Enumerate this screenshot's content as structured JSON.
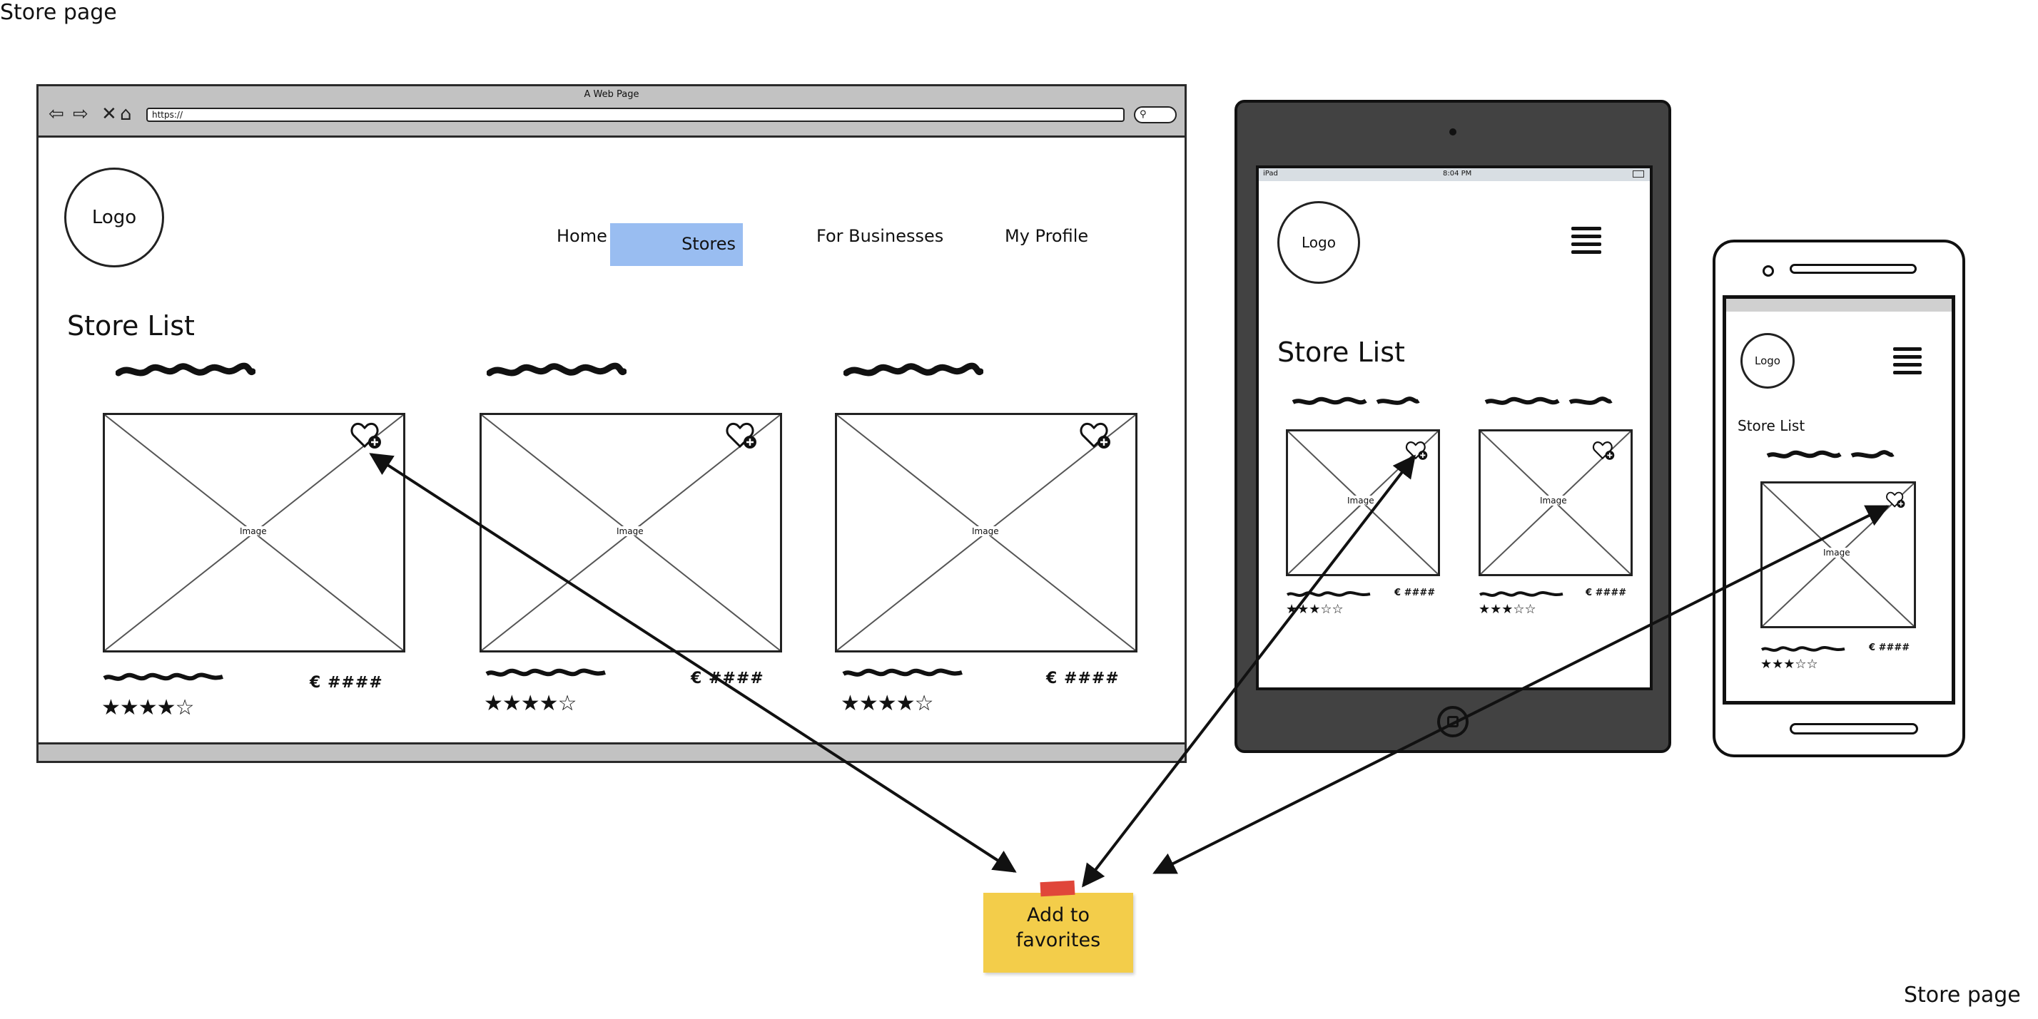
{
  "labels": {
    "top_left": "Store page",
    "bottom_right": "Store page"
  },
  "desktop": {
    "window_title": "A Web Page",
    "url": "https://",
    "logo": "Logo",
    "nav": {
      "home": "Home",
      "stores": "Stores",
      "for_businesses": "For Businesses",
      "my_profile": "My Profile"
    },
    "heading": "Store List",
    "cards": [
      {
        "image_label": "Image",
        "price": "€ ####",
        "rating": 4,
        "rating_max": 5
      },
      {
        "image_label": "Image",
        "price": "€ ####",
        "rating": 4,
        "rating_max": 5
      },
      {
        "image_label": "Image",
        "price": "€ ####",
        "rating": 4,
        "rating_max": 5
      }
    ]
  },
  "tablet": {
    "status_left": "iPad",
    "status_time": "8:04 PM",
    "logo": "Logo",
    "heading": "Store List",
    "cards": [
      {
        "image_label": "Image",
        "price": "€ ####",
        "rating": 3,
        "rating_max": 5
      },
      {
        "image_label": "Image",
        "price": "€ ####",
        "rating": 3,
        "rating_max": 5
      }
    ]
  },
  "phone": {
    "logo": "Logo",
    "heading": "Store List",
    "cards": [
      {
        "image_label": "Image",
        "price": "€ ####",
        "rating": 3,
        "rating_max": 5
      }
    ]
  },
  "note": {
    "text": "Add to favorites"
  },
  "colors": {
    "active_nav": "#99bdf1",
    "note": "#f3cd4a",
    "tape": "#e0463a",
    "tablet_body": "#424242"
  },
  "icons": [
    "back-arrow-icon",
    "forward-arrow-icon",
    "close-icon",
    "home-icon",
    "search-icon",
    "heart-plus-icon",
    "hamburger-menu-icon",
    "star-icon"
  ]
}
